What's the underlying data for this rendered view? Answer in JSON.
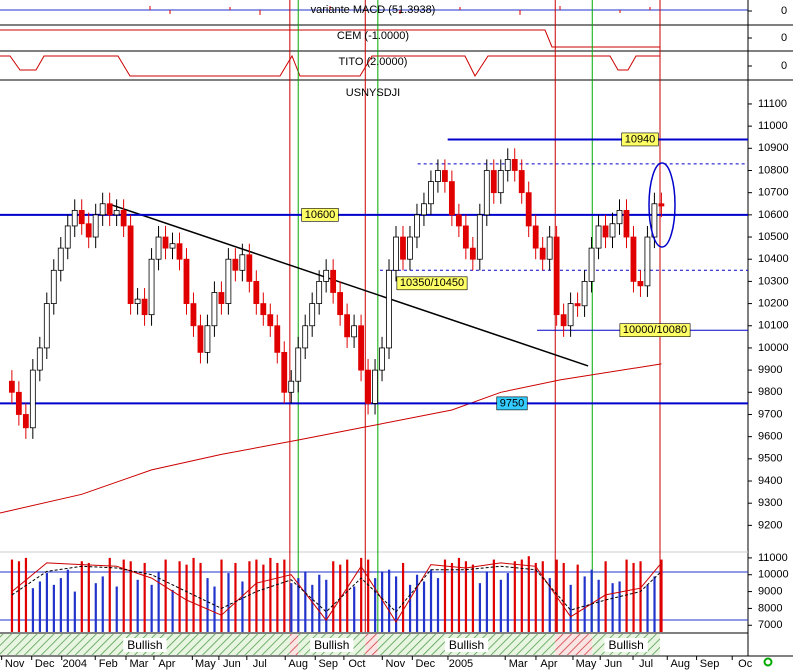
{
  "chart_data": {
    "type": "candlestick",
    "title": "USNYSDJI",
    "indicators": [
      {
        "label": "variante MACD (51.3938)",
        "yticks": [
          0
        ]
      },
      {
        "label": "CEM (-1.0000)",
        "yticks": [
          0
        ]
      },
      {
        "label": "TITO (2.0000)",
        "yticks": [
          0
        ]
      }
    ],
    "xlim": [
      -1.7,
      105.4
    ],
    "xticks": [
      {
        "value": 0.4,
        "label": "Nov"
      },
      {
        "value": 4.7,
        "label": "Dec"
      },
      {
        "value": 9.0,
        "label": "2004"
      },
      {
        "value": 13.8,
        "label": "Feb"
      },
      {
        "value": 18.2,
        "label": "Mar"
      },
      {
        "value": 22.2,
        "label": "Apr"
      },
      {
        "value": 27.7,
        "label": "May"
      },
      {
        "value": 31.5,
        "label": "Jun"
      },
      {
        "value": 35.5,
        "label": "Jul"
      },
      {
        "value": 41.0,
        "label": "Aug"
      },
      {
        "value": 45.3,
        "label": "Sep"
      },
      {
        "value": 49.4,
        "label": "Oct"
      },
      {
        "value": 54.9,
        "label": "Nov"
      },
      {
        "value": 59.2,
        "label": "Dec"
      },
      {
        "value": 64.3,
        "label": "2005"
      },
      {
        "value": 72.5,
        "label": "Mar"
      },
      {
        "value": 76.9,
        "label": "Apr"
      },
      {
        "value": 82.2,
        "label": "May"
      },
      {
        "value": 86.1,
        "label": "Jun"
      },
      {
        "value": 90.8,
        "label": "Jul"
      },
      {
        "value": 95.7,
        "label": "Aug"
      },
      {
        "value": 99.9,
        "label": "Sep"
      },
      {
        "value": 105.0,
        "label": "Oc"
      }
    ],
    "ylim": [
      9098,
      11208
    ],
    "yticks": [
      9200,
      9300,
      9400,
      9500,
      9600,
      9700,
      9800,
      9900,
      10000,
      10100,
      10200,
      10300,
      10400,
      10500,
      10600,
      10700,
      10800,
      10900,
      11000,
      11100
    ],
    "up_color": "#ffffff",
    "down_color": "#e00000",
    "open": [
      9850,
      9800,
      9700,
      9640,
      9900,
      10000,
      10200,
      10350,
      10450,
      10550,
      10620,
      10560,
      10500,
      10600,
      10650,
      10600,
      10620,
      10550,
      10200,
      10220,
      10150,
      10400,
      10500,
      10450,
      10470,
      10400,
      10200,
      10100,
      9980,
      10100,
      10250,
      10200,
      10400,
      10350,
      10420,
      10300,
      10200,
      10150,
      10100,
      9980,
      9800,
      9850,
      10000,
      10100,
      10200,
      10300,
      10350,
      10250,
      10150,
      10050,
      10100,
      9900,
      9750,
      9900,
      10000,
      10350,
      10500,
      10400,
      10500,
      10600,
      10650,
      10750,
      10800,
      10750,
      10600,
      10550,
      10450,
      10400,
      10600,
      10800,
      10700,
      10800,
      10850,
      10800,
      10700,
      10550,
      10450,
      10400,
      10500,
      10150,
      10100,
      10200,
      10190,
      10300,
      10450,
      10550,
      10500,
      10560,
      10620,
      10500,
      10300,
      10280,
      10500,
      10650
    ],
    "high": [
      9900,
      9850,
      9750,
      9950,
      10050,
      10250,
      10400,
      10500,
      10600,
      10670,
      10670,
      10610,
      10650,
      10700,
      10700,
      10670,
      10670,
      10600,
      10270,
      10270,
      10450,
      10550,
      10550,
      10520,
      10520,
      10450,
      10250,
      10150,
      10150,
      10300,
      10300,
      10450,
      10450,
      10470,
      10470,
      10350,
      10250,
      10200,
      10150,
      10030,
      9900,
      10050,
      10150,
      10250,
      10350,
      10400,
      10400,
      10300,
      10200,
      10150,
      10150,
      9950,
      9950,
      10050,
      10400,
      10550,
      10550,
      10550,
      10650,
      10700,
      10800,
      10850,
      10850,
      10800,
      10650,
      10600,
      10500,
      10650,
      10850,
      10850,
      10850,
      10900,
      10900,
      10850,
      10750,
      10600,
      10500,
      10550,
      10550,
      10200,
      10250,
      10250,
      10350,
      10500,
      10600,
      10600,
      10610,
      10670,
      10670,
      10550,
      10350,
      10550,
      10700,
      10700
    ],
    "low": [
      9750,
      9650,
      9590,
      9590,
      9850,
      9950,
      10150,
      10300,
      10400,
      10500,
      10510,
      10450,
      10450,
      10550,
      10550,
      10550,
      10500,
      10150,
      10150,
      10100,
      10100,
      10350,
      10400,
      10400,
      10350,
      10150,
      10050,
      9930,
      9930,
      10050,
      10150,
      10150,
      10300,
      10300,
      10250,
      10150,
      10100,
      10050,
      9930,
      9750,
      9750,
      9800,
      9950,
      10050,
      10150,
      10250,
      10200,
      10100,
      10000,
      10000,
      9850,
      9700,
      9700,
      9850,
      9950,
      10300,
      10350,
      10350,
      10450,
      10550,
      10600,
      10700,
      10700,
      10550,
      10500,
      10400,
      10350,
      10350,
      10550,
      10650,
      10650,
      10750,
      10750,
      10650,
      10500,
      10400,
      10350,
      10350,
      10100,
      10050,
      10050,
      10140,
      10140,
      10250,
      10400,
      10450,
      10450,
      10510,
      10450,
      10250,
      10230,
      10230,
      10450,
      10590
    ],
    "close": [
      9800,
      9700,
      9640,
      9900,
      10000,
      10200,
      10350,
      10450,
      10550,
      10620,
      10560,
      10500,
      10600,
      10650,
      10600,
      10620,
      10550,
      10200,
      10220,
      10150,
      10400,
      10500,
      10450,
      10470,
      10400,
      10200,
      10100,
      9980,
      10100,
      10250,
      10200,
      10400,
      10350,
      10420,
      10300,
      10200,
      10150,
      10100,
      9980,
      9800,
      9850,
      10000,
      10100,
      10200,
      10300,
      10350,
      10250,
      10150,
      10050,
      10100,
      9900,
      9750,
      9900,
      10000,
      10350,
      10500,
      10400,
      10500,
      10600,
      10650,
      10750,
      10800,
      10750,
      10600,
      10550,
      10450,
      10400,
      10600,
      10800,
      10700,
      10800,
      10850,
      10800,
      10700,
      10550,
      10450,
      10400,
      10500,
      10150,
      10100,
      10200,
      10190,
      10300,
      10450,
      10550,
      10500,
      10560,
      10620,
      10500,
      10300,
      10280,
      10500,
      10650,
      10640
    ],
    "moving_average": {
      "color": "#cc0000",
      "x": [
        -1.7,
        10,
        20,
        30,
        41,
        50,
        63,
        70,
        78.5,
        93
      ],
      "values": [
        9256,
        9340,
        9450,
        9520,
        9585,
        9640,
        9720,
        9800,
        9856,
        9928
      ]
    },
    "trendline": {
      "color": "#000000",
      "x": [
        14.3,
        82.5
      ],
      "values": [
        10645,
        9919
      ]
    },
    "level_color": "#0000cc",
    "levels": [
      {
        "value": 10940,
        "start": 62.4,
        "style": "solid",
        "label_color": "#ffff66"
      },
      {
        "value": 10830,
        "start": 58.1,
        "style": "dashed"
      },
      {
        "value": 10600,
        "start": -1.7,
        "style": "solid",
        "label_color": "#ffff66"
      },
      {
        "value": 10350,
        "start": 52.7,
        "style": "dashed",
        "label": "10350/10450",
        "label_color": "#ffff66"
      },
      {
        "value": 10080,
        "start": 75.2,
        "style": "thin",
        "label": "10000/10080",
        "label_color": "#ffff66"
      },
      {
        "value": 9750,
        "start": -1.7,
        "style": "solid",
        "label_color": "#33ccff"
      }
    ],
    "signals": {
      "sell": [
        39.8,
        50.6,
        77.8,
        92.8
      ],
      "buy": [
        41.0,
        52.4,
        83.1
      ],
      "sell_color": "#cc0000",
      "buy_color": "#00aa00"
    },
    "bands": [
      "Bullish",
      "Bullish",
      "Bullish",
      "Bullish"
    ],
    "oscillator": {
      "ylim": [
        6600,
        11350
      ],
      "yticks": [
        7000,
        8000,
        9000,
        10000,
        11000
      ],
      "bars": [
        10900,
        10800,
        11000,
        9200,
        9600,
        10100,
        9400,
        9800,
        10300,
        9000,
        10800,
        10700,
        9500,
        9900,
        11000,
        9300,
        10900,
        10800,
        9700,
        10700,
        9400,
        10200,
        10900,
        9100,
        10800,
        10600,
        11000,
        10700,
        9800,
        9300,
        10900,
        10100,
        10700,
        9600,
        10800,
        10900,
        10600,
        11000,
        10700,
        10900,
        9500,
        9800,
        10200,
        9400,
        10000,
        9700,
        10800,
        10600,
        10900,
        9300,
        11000,
        10900,
        9800,
        10200,
        10300,
        9900,
        10700,
        9400,
        10000,
        9600,
        10300,
        9800,
        10900,
        10700,
        11000,
        10800,
        10600,
        9500,
        10200,
        10900,
        9700,
        10100,
        10800,
        10900,
        11100,
        10700,
        10800,
        9800,
        10900,
        10700,
        9400,
        10600,
        9900,
        10300,
        9700,
        10800,
        9500,
        9600,
        10900,
        10700,
        10800,
        9400,
        9900,
        10900
      ],
      "up_color": "#2233cc",
      "down_color": "#e00000",
      "series": [
        {
          "color": "#cc0000",
          "dash": false,
          "x": [
            0,
            5,
            10,
            15,
            20,
            25,
            30,
            35,
            40,
            45,
            50,
            55,
            60,
            65,
            70,
            75,
            80,
            85,
            90,
            93
          ],
          "values": [
            9000,
            10700,
            10600,
            10500,
            9800,
            8500,
            7600,
            9500,
            10000,
            7300,
            10500,
            7200,
            10600,
            10400,
            10700,
            10500,
            7500,
            8800,
            9200,
            10700
          ]
        },
        {
          "color": "#000000",
          "dash": true,
          "x": [
            0,
            5,
            10,
            15,
            20,
            25,
            30,
            35,
            40,
            45,
            50,
            55,
            60,
            65,
            70,
            75,
            80,
            85,
            90,
            93
          ],
          "values": [
            8800,
            10200,
            10500,
            10400,
            10000,
            9000,
            8000,
            9000,
            9700,
            7800,
            9800,
            7800,
            10300,
            10300,
            10500,
            10300,
            7900,
            8500,
            9000,
            10200
          ]
        }
      ]
    }
  }
}
